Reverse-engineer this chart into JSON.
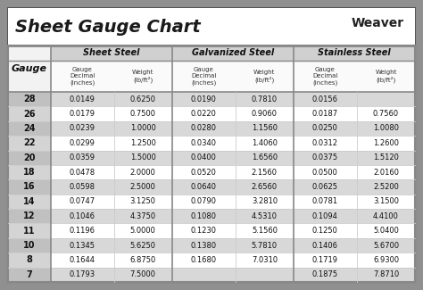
{
  "title": "Sheet Gauge Chart",
  "bg_outer": "#909090",
  "bg_inner": "#ffffff",
  "bg_title": "#ffffff",
  "border_color": "#555555",
  "line_color_heavy": "#888888",
  "line_color_light": "#cccccc",
  "row_bg_shaded": "#d8d8d8",
  "row_bg_white": "#ffffff",
  "gauge_col_bg_shaded": "#c0c0c0",
  "gauge_col_bg_white": "#d4d4d4",
  "header_section_bg": "#d0d0d0",
  "gauges": [
    28,
    26,
    24,
    22,
    20,
    18,
    16,
    14,
    12,
    11,
    10,
    8,
    7
  ],
  "sheet_steel": [
    [
      "0.0149",
      "0.6250"
    ],
    [
      "0.0179",
      "0.7500"
    ],
    [
      "0.0239",
      "1.0000"
    ],
    [
      "0.0299",
      "1.2500"
    ],
    [
      "0.0359",
      "1.5000"
    ],
    [
      "0.0478",
      "2.0000"
    ],
    [
      "0.0598",
      "2.5000"
    ],
    [
      "0.0747",
      "3.1250"
    ],
    [
      "0.1046",
      "4.3750"
    ],
    [
      "0.1196",
      "5.0000"
    ],
    [
      "0.1345",
      "5.6250"
    ],
    [
      "0.1644",
      "6.8750"
    ],
    [
      "0.1793",
      "7.5000"
    ]
  ],
  "galvanized_steel": [
    [
      "0.0190",
      "0.7810"
    ],
    [
      "0.0220",
      "0.9060"
    ],
    [
      "0.0280",
      "1.1560"
    ],
    [
      "0.0340",
      "1.4060"
    ],
    [
      "0.0400",
      "1.6560"
    ],
    [
      "0.0520",
      "2.1560"
    ],
    [
      "0.0640",
      "2.6560"
    ],
    [
      "0.0790",
      "3.2810"
    ],
    [
      "0.1080",
      "4.5310"
    ],
    [
      "0.1230",
      "5.1560"
    ],
    [
      "0.1380",
      "5.7810"
    ],
    [
      "0.1680",
      "7.0310"
    ],
    [
      "",
      ""
    ]
  ],
  "stainless_steel": [
    [
      "0.0156",
      ""
    ],
    [
      "0.0187",
      "0.7560"
    ],
    [
      "0.0250",
      "1.0080"
    ],
    [
      "0.0312",
      "1.2600"
    ],
    [
      "0.0375",
      "1.5120"
    ],
    [
      "0.0500",
      "2.0160"
    ],
    [
      "0.0625",
      "2.5200"
    ],
    [
      "0.0781",
      "3.1500"
    ],
    [
      "0.1094",
      "4.4100"
    ],
    [
      "0.1250",
      "5.0400"
    ],
    [
      "0.1406",
      "5.6700"
    ],
    [
      "0.1719",
      "6.9300"
    ],
    [
      "0.1875",
      "7.8710"
    ]
  ]
}
